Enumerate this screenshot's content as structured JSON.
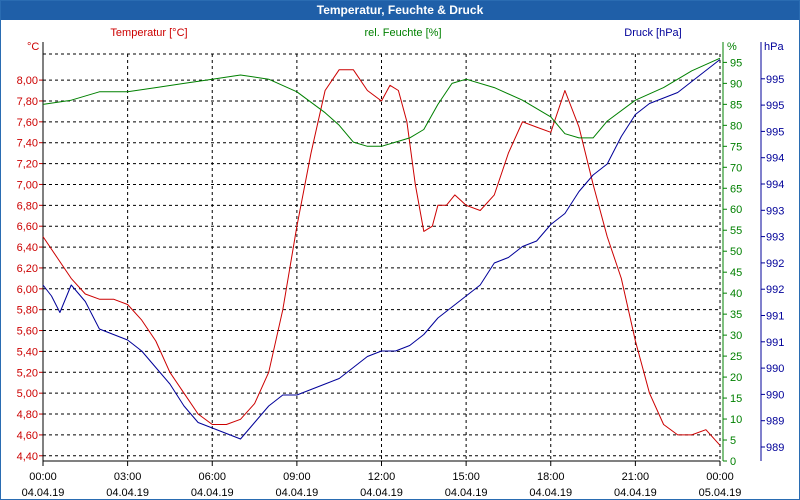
{
  "window": {
    "title": "Temperatur, Feuchte & Druck"
  },
  "chart_data": {
    "type": "line",
    "title": "Temperatur, Feuchte & Druck",
    "colors": {
      "temperature": "#cc0000",
      "humidity": "#008000",
      "pressure": "#000099"
    },
    "axes": {
      "left": {
        "unit": "°C",
        "label": "Temperatur [°C]",
        "ylim": [
          4.35,
          8.25
        ],
        "ticks": [
          "4,40",
          "4,60",
          "4,80",
          "5,00",
          "5,20",
          "5,40",
          "5,60",
          "5,80",
          "6,00",
          "6,20",
          "6,40",
          "6,60",
          "6,80",
          "7,00",
          "7,20",
          "7,40",
          "7,60",
          "7,80",
          "8,00"
        ]
      },
      "right1": {
        "unit": "%",
        "label": "rel. Feuchte [%]",
        "ylim": [
          0,
          97
        ],
        "ticks": [
          "0",
          "5",
          "10",
          "15",
          "20",
          "25",
          "30",
          "35",
          "40",
          "45",
          "50",
          "55",
          "60",
          "65",
          "70",
          "75",
          "80",
          "85",
          "90",
          "95"
        ]
      },
      "right2": {
        "unit": "hPa",
        "label": "Druck [hPa]",
        "ylim": [
          988.6,
          996.0
        ],
        "ticks": [
          "989",
          "989",
          "990",
          "990",
          "991",
          "991",
          "992",
          "992",
          "993",
          "993",
          "994",
          "994",
          "995",
          "995",
          "995"
        ]
      }
    },
    "x_ticks": [
      {
        "time": "00:00",
        "date": "04.04.19"
      },
      {
        "time": "03:00",
        "date": "04.04.19"
      },
      {
        "time": "06:00",
        "date": "04.04.19"
      },
      {
        "time": "09:00",
        "date": "04.04.19"
      },
      {
        "time": "12:00",
        "date": "04.04.19"
      },
      {
        "time": "15:00",
        "date": "04.04.19"
      },
      {
        "time": "18:00",
        "date": "04.04.19"
      },
      {
        "time": "21:00",
        "date": "04.04.19"
      },
      {
        "time": "00:00",
        "date": "05.04.19"
      }
    ],
    "x_range_hours": [
      0,
      24
    ],
    "series": [
      {
        "name": "Temperatur",
        "key": "temperature",
        "x": [
          0,
          0.5,
          1,
          1.5,
          2,
          2.5,
          3,
          3.5,
          4,
          4.5,
          5,
          5.5,
          6,
          6.5,
          7,
          7.5,
          8,
          8.5,
          9,
          9.5,
          10,
          10.5,
          11,
          11.5,
          12,
          12.3,
          12.6,
          12.9,
          13.2,
          13.5,
          13.8,
          14,
          14.3,
          14.6,
          15,
          15.5,
          16,
          16.5,
          17,
          17.5,
          18,
          18.5,
          19,
          19.5,
          20,
          20.5,
          21,
          21.5,
          22,
          22.5,
          23,
          23.5,
          24
        ],
        "values": [
          6.5,
          6.3,
          6.1,
          5.95,
          5.9,
          5.9,
          5.85,
          5.7,
          5.5,
          5.2,
          5.0,
          4.8,
          4.7,
          4.7,
          4.75,
          4.9,
          5.2,
          5.8,
          6.6,
          7.3,
          7.9,
          8.1,
          8.1,
          7.9,
          7.8,
          7.95,
          7.9,
          7.6,
          7.0,
          6.55,
          6.6,
          6.8,
          6.8,
          6.9,
          6.8,
          6.75,
          6.9,
          7.3,
          7.6,
          7.55,
          7.5,
          7.9,
          7.55,
          7.0,
          6.5,
          6.1,
          5.5,
          5.0,
          4.7,
          4.6,
          4.6,
          4.65,
          4.5
        ]
      },
      {
        "name": "rel. Feuchte",
        "key": "humidity",
        "x": [
          0,
          1,
          2,
          3,
          4,
          5,
          6,
          7,
          8,
          9,
          10,
          10.5,
          11,
          11.5,
          12,
          12.5,
          13,
          13.5,
          14,
          14.5,
          15,
          16,
          17,
          18,
          18.5,
          19,
          19.5,
          20,
          21,
          22,
          23,
          24
        ],
        "values": [
          85,
          86,
          88,
          88,
          89,
          90,
          91,
          92,
          91,
          88,
          83,
          80,
          76,
          75,
          75,
          76,
          77,
          79,
          85,
          90,
          91,
          89,
          86,
          82,
          78,
          77,
          77,
          81,
          86,
          89,
          93,
          96
        ]
      },
      {
        "name": "Druck",
        "key": "pressure",
        "x": [
          0,
          0.3,
          0.6,
          1,
          1.5,
          2,
          2.5,
          3,
          3.5,
          4,
          4.5,
          5,
          5.5,
          6,
          6.5,
          7,
          7.5,
          8,
          8.5,
          9,
          9.5,
          10,
          10.5,
          11,
          11.5,
          12,
          12.5,
          13,
          13.5,
          14,
          14.5,
          15,
          15.5,
          16,
          16.5,
          17,
          17.5,
          18,
          18.5,
          19,
          19.5,
          20,
          20.5,
          21,
          21.5,
          22,
          22.5,
          23,
          23.5,
          24
        ],
        "values": [
          991.8,
          991.6,
          991.3,
          991.8,
          991.5,
          991.0,
          990.9,
          990.8,
          990.6,
          990.3,
          990.0,
          989.6,
          989.3,
          989.2,
          989.1,
          989.0,
          989.3,
          989.6,
          989.8,
          989.8,
          989.9,
          990.0,
          990.1,
          990.3,
          990.5,
          990.6,
          990.6,
          990.7,
          990.9,
          991.2,
          991.4,
          991.6,
          991.8,
          992.2,
          992.3,
          992.5,
          992.6,
          992.9,
          993.1,
          993.5,
          993.8,
          994.0,
          994.5,
          994.9,
          995.1,
          995.2,
          995.3,
          995.5,
          995.7,
          995.9
        ]
      }
    ]
  }
}
